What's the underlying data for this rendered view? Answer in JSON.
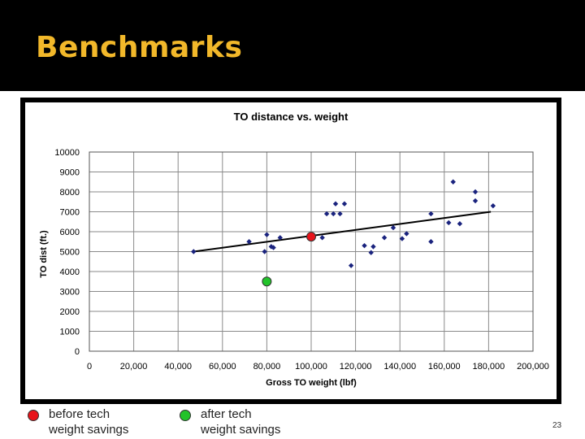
{
  "slide": {
    "title": "Benchmarks",
    "page_number": "23"
  },
  "legend": {
    "before_line1": "before tech",
    "before_line2": "weight savings",
    "after_line1": "after tech",
    "after_line2": "weight savings",
    "before_color": "#e8141b",
    "after_color": "#22c32a"
  },
  "chart_data": {
    "type": "scatter",
    "title": "TO distance vs. weight",
    "xlabel": "Gross TO weight (lbf)",
    "ylabel": "TO dist (ft.)",
    "xlim": [
      0,
      200000
    ],
    "ylim": [
      0,
      10000
    ],
    "x_ticks": [
      0,
      20000,
      40000,
      60000,
      80000,
      100000,
      120000,
      140000,
      160000,
      180000,
      200000
    ],
    "x_tick_labels": [
      "0",
      "20,000",
      "40,000",
      "60,000",
      "80,000",
      "100,000",
      "120,000",
      "140,000",
      "160,000",
      "180,000",
      "200,000"
    ],
    "y_ticks": [
      0,
      1000,
      2000,
      3000,
      4000,
      5000,
      6000,
      7000,
      8000,
      9000,
      10000
    ],
    "y_tick_labels": [
      "0",
      "1000",
      "2000",
      "3000",
      "4000",
      "5000",
      "6000",
      "7000",
      "8000",
      "9000",
      "10000"
    ],
    "grid": true,
    "series": [
      {
        "marker": "diamond",
        "color": "#1a237e",
        "points": [
          [
            47000,
            5000
          ],
          [
            72000,
            5500
          ],
          [
            80000,
            5850
          ],
          [
            79000,
            5000
          ],
          [
            82000,
            5250
          ],
          [
            83000,
            5200
          ],
          [
            86000,
            5700
          ],
          [
            105000,
            5700
          ],
          [
            107000,
            6900
          ],
          [
            110000,
            6900
          ],
          [
            111000,
            7400
          ],
          [
            113000,
            6900
          ],
          [
            115000,
            7400
          ],
          [
            118000,
            4300
          ],
          [
            124000,
            5300
          ],
          [
            127000,
            4950
          ],
          [
            128000,
            5250
          ],
          [
            133000,
            5700
          ],
          [
            137000,
            6200
          ],
          [
            141000,
            5650
          ],
          [
            143000,
            5900
          ],
          [
            154000,
            6900
          ],
          [
            154000,
            5500
          ],
          [
            162000,
            6450
          ],
          [
            164000,
            8500
          ],
          [
            167000,
            6400
          ],
          [
            174000,
            8000
          ],
          [
            174000,
            7550
          ],
          [
            182000,
            7300
          ]
        ]
      },
      {
        "name": "before tech weight savings",
        "marker": "circle",
        "color": "#e8141b",
        "points": [
          [
            100000,
            5750
          ]
        ]
      },
      {
        "name": "after tech weight savings",
        "marker": "circle",
        "color": "#22c32a",
        "points": [
          [
            80000,
            3500
          ]
        ]
      }
    ],
    "trendline": {
      "from": [
        47000,
        5000
      ],
      "to": [
        181000,
        7000
      ],
      "color": "#000000"
    }
  }
}
